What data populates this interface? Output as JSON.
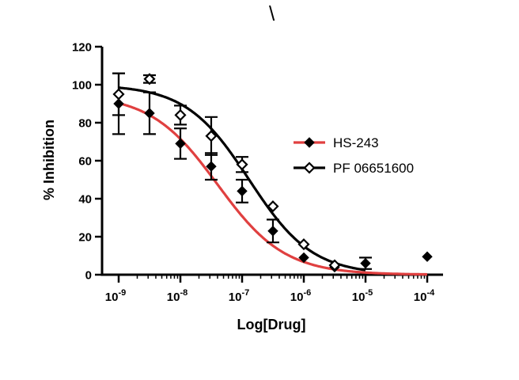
{
  "stray_mark": "\\",
  "chart_data": {
    "type": "scatter",
    "title": "",
    "xlabel": "Log[Drug]",
    "ylabel": "% Inhibition",
    "x_scale": "log",
    "xlim": [
      5e-10,
      0.0002
    ],
    "ylim": [
      0,
      120
    ],
    "yticks": [
      0,
      20,
      40,
      60,
      80,
      100,
      120
    ],
    "xticks": [
      {
        "value": 1e-09,
        "mantissa": "10",
        "exp": "-9"
      },
      {
        "value": 1e-08,
        "mantissa": "10",
        "exp": "-8"
      },
      {
        "value": 1e-07,
        "mantissa": "10",
        "exp": "-7"
      },
      {
        "value": 1e-06,
        "mantissa": "10",
        "exp": "-6"
      },
      {
        "value": 1e-05,
        "mantissa": "10",
        "exp": "-5"
      },
      {
        "value": 0.0001,
        "mantissa": "10",
        "exp": "-4"
      }
    ],
    "legend_position": "right",
    "series": [
      {
        "name": "HS-243",
        "marker": "filled-diamond",
        "line_color": "#e04040",
        "marker_color": "#000000",
        "points": [
          {
            "x": 1e-09,
            "y": 90,
            "err": 16
          },
          {
            "x": 3.16e-09,
            "y": 85,
            "err": 11
          },
          {
            "x": 1e-08,
            "y": 69,
            "err": 8
          },
          {
            "x": 3.16e-08,
            "y": 57,
            "err": 7
          },
          {
            "x": 1e-07,
            "y": 44,
            "err": 6
          },
          {
            "x": 3.16e-07,
            "y": 23,
            "err": 6
          },
          {
            "x": 1e-06,
            "y": 9,
            "err": 0
          },
          {
            "x": 3.16e-06,
            "y": 4,
            "err": 0
          },
          {
            "x": 1e-05,
            "y": 6,
            "err": 3
          },
          {
            "x": 0.0001,
            "y": 9.5,
            "err": 0
          }
        ],
        "fit": {
          "top": 95,
          "bottom": 0,
          "ic50": 4e-08,
          "hill": 0.8
        }
      },
      {
        "name": "PF 06651600",
        "marker": "open-diamond",
        "line_color": "#000000",
        "marker_color": "#000000",
        "points": [
          {
            "x": 1e-09,
            "y": 95,
            "err": 11
          },
          {
            "x": 3.16e-09,
            "y": 103,
            "err": 2
          },
          {
            "x": 1e-08,
            "y": 84,
            "err": 5
          },
          {
            "x": 3.16e-08,
            "y": 73,
            "err": 10
          },
          {
            "x": 1e-07,
            "y": 58,
            "err": 4
          },
          {
            "x": 3.16e-07,
            "y": 36,
            "err": 0
          },
          {
            "x": 1e-06,
            "y": 16,
            "err": 0
          },
          {
            "x": 3.16e-06,
            "y": 5,
            "err": 0
          }
        ],
        "fit": {
          "top": 100,
          "bottom": 0,
          "ic50": 1.3e-07,
          "hill": 0.85
        }
      }
    ]
  }
}
